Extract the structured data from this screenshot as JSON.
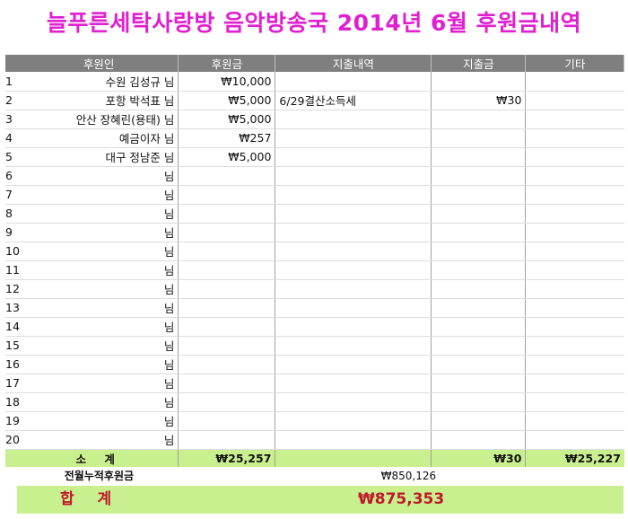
{
  "title": "늘푸른세탁사랑방 음악방송국 2014년 6월 후원금내역",
  "headers": {
    "donor": "후원인",
    "amount": "후원금",
    "expense_detail": "지출내역",
    "expense_amount": "지출금",
    "other": "기타"
  },
  "rows": [
    {
      "num": "1",
      "donor": "수원 김성규 님",
      "amount": "₩10,000",
      "expense_detail": "",
      "expense_amount": "",
      "other": ""
    },
    {
      "num": "2",
      "donor": "포항 박석표 님",
      "amount": "₩5,000",
      "expense_detail": "6/29결산소득세",
      "expense_amount": "₩30",
      "other": ""
    },
    {
      "num": "3",
      "donor": "안산 장혜린(용태) 님",
      "amount": "₩5,000",
      "expense_detail": "",
      "expense_amount": "",
      "other": ""
    },
    {
      "num": "4",
      "donor": "예금이자 님",
      "amount": "₩257",
      "expense_detail": "",
      "expense_amount": "",
      "other": ""
    },
    {
      "num": "5",
      "donor": "대구 정남준 님",
      "amount": "₩5,000",
      "expense_detail": "",
      "expense_amount": "",
      "other": ""
    },
    {
      "num": "6",
      "donor": "님",
      "amount": "",
      "expense_detail": "",
      "expense_amount": "",
      "other": ""
    },
    {
      "num": "7",
      "donor": "님",
      "amount": "",
      "expense_detail": "",
      "expense_amount": "",
      "other": ""
    },
    {
      "num": "8",
      "donor": "님",
      "amount": "",
      "expense_detail": "",
      "expense_amount": "",
      "other": ""
    },
    {
      "num": "9",
      "donor": "님",
      "amount": "",
      "expense_detail": "",
      "expense_amount": "",
      "other": ""
    },
    {
      "num": "10",
      "donor": "님",
      "amount": "",
      "expense_detail": "",
      "expense_amount": "",
      "other": ""
    },
    {
      "num": "11",
      "donor": "님",
      "amount": "",
      "expense_detail": "",
      "expense_amount": "",
      "other": ""
    },
    {
      "num": "12",
      "donor": "님",
      "amount": "",
      "expense_detail": "",
      "expense_amount": "",
      "other": ""
    },
    {
      "num": "13",
      "donor": "님",
      "amount": "",
      "expense_detail": "",
      "expense_amount": "",
      "other": ""
    },
    {
      "num": "14",
      "donor": "님",
      "amount": "",
      "expense_detail": "",
      "expense_amount": "",
      "other": ""
    },
    {
      "num": "15",
      "donor": "님",
      "amount": "",
      "expense_detail": "",
      "expense_amount": "",
      "other": ""
    },
    {
      "num": "16",
      "donor": "님",
      "amount": "",
      "expense_detail": "",
      "expense_amount": "",
      "other": ""
    },
    {
      "num": "17",
      "donor": "님",
      "amount": "",
      "expense_detail": "",
      "expense_amount": "",
      "other": ""
    },
    {
      "num": "18",
      "donor": "님",
      "amount": "",
      "expense_detail": "",
      "expense_amount": "",
      "other": ""
    },
    {
      "num": "19",
      "donor": "님",
      "amount": "",
      "expense_detail": "",
      "expense_amount": "",
      "other": ""
    },
    {
      "num": "20",
      "donor": "님",
      "amount": "",
      "expense_detail": "",
      "expense_amount": "",
      "other": ""
    }
  ],
  "subtotal": {
    "label": "소 계",
    "amount": "₩25,257",
    "expense_amount": "₩30",
    "other": "₩25,227"
  },
  "previous": {
    "label": "전월누적후원금",
    "value": "₩850,126"
  },
  "total": {
    "label": "합 계",
    "value": "₩875,353"
  },
  "colors": {
    "title": "#e01fd0",
    "header_bg": "#7f7f7f",
    "subtotal_bg": "#c9f08f",
    "total_text": "#c0182a"
  }
}
